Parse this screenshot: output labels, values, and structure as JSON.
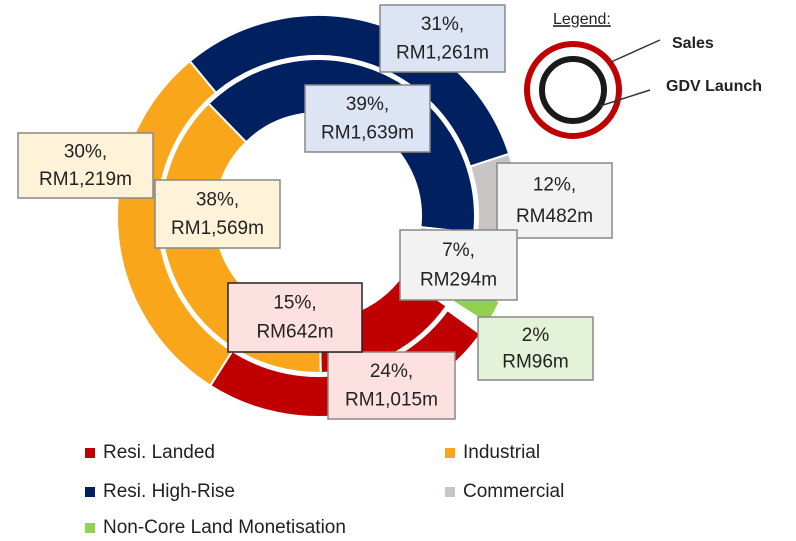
{
  "chart_data": {
    "type": "donut",
    "legend_title": "Legend:",
    "categories": [
      "Resi. Landed",
      "Industrial",
      "Resi. High-Rise",
      "Commercial",
      "Non-Core Land Monetisation"
    ],
    "colors": [
      "#c00000",
      "#f9a61a",
      "#002060",
      "#c9c5c5",
      "#92d050"
    ],
    "series": [
      {
        "name": "Sales",
        "values": [
          24,
          30,
          31,
          12,
          2
        ],
        "value_labels": [
          "24%,",
          "30%,",
          "31%,",
          "12%,",
          "2%"
        ],
        "amounts": [
          "RM1,015m",
          "RM1,219m",
          "RM1,261m",
          "RM482m",
          "RM96m"
        ]
      },
      {
        "name": "GDV Launch",
        "values": [
          15,
          38,
          39,
          7,
          null
        ],
        "value_labels": [
          "15%,",
          "38%,",
          "39%,",
          "7%,",
          null
        ],
        "amounts": [
          "RM642m",
          "RM1,569m",
          "RM1,639m",
          "RM294m",
          null
        ]
      }
    ]
  }
}
